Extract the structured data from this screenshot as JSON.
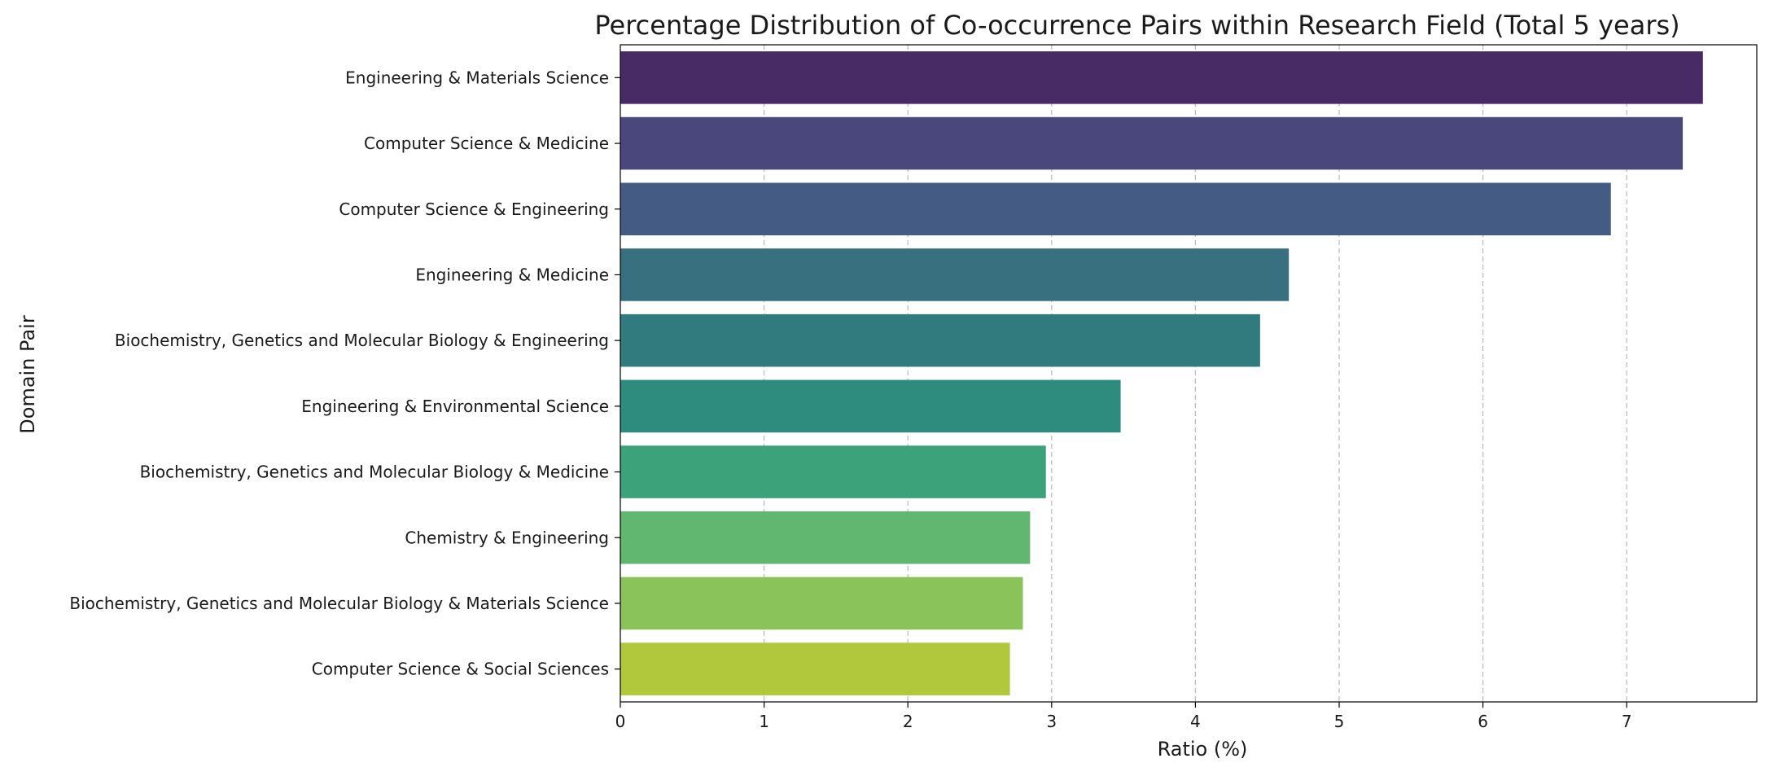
{
  "chart_data": {
    "type": "bar",
    "orientation": "horizontal",
    "title": "Percentage Distribution of Co-occurrence Pairs within Research Field (Total 5 years)",
    "xlabel": "Ratio (%)",
    "ylabel": "Domain Pair",
    "categories": [
      "Engineering & Materials Science",
      "Computer Science & Medicine",
      "Computer Science & Engineering",
      "Engineering & Medicine",
      "Biochemistry, Genetics and Molecular Biology & Engineering",
      "Engineering & Environmental Science",
      "Biochemistry, Genetics and Molecular Biology & Medicine",
      "Chemistry & Engineering",
      "Biochemistry, Genetics and Molecular Biology & Materials Science",
      "Computer Science & Social Sciences"
    ],
    "values": [
      7.53,
      7.39,
      6.89,
      4.65,
      4.45,
      3.48,
      2.96,
      2.85,
      2.8,
      2.71
    ],
    "colors": [
      "#482a65",
      "#4a477c",
      "#445c84",
      "#39707f",
      "#317b7f",
      "#2e8c7e",
      "#3ca279",
      "#61b76f",
      "#8ac35a",
      "#b1c83c"
    ],
    "xlim": [
      0,
      7.9
    ],
    "xticks": [
      0,
      1,
      2,
      3,
      4,
      5,
      6,
      7
    ],
    "grid": "x-dashed"
  }
}
